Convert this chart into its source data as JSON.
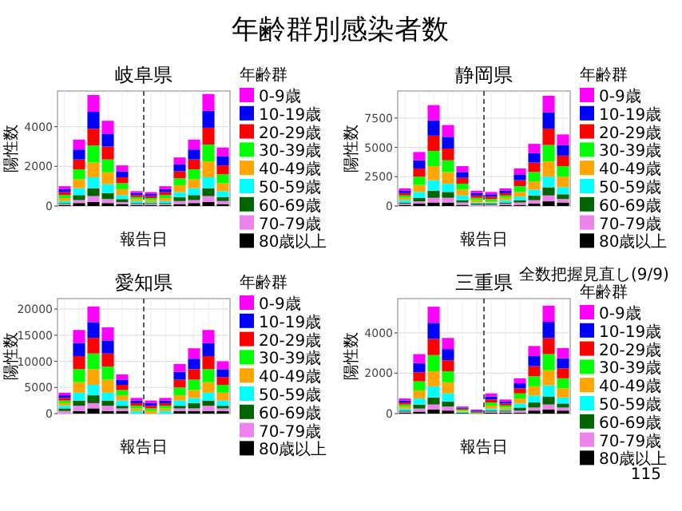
{
  "chart_data": [
    {
      "type": "other",
      "title": "年齢群別感染者数",
      "annotations": [
        "115"
      ]
    },
    {
      "type": "bar",
      "title": "岐阜県",
      "xlabel": "報告日",
      "ylabel": "陽性数",
      "legend_title": "年齢群",
      "legend": "right",
      "grid": true,
      "stacked": true,
      "ylim": [
        0,
        5800
      ],
      "yticks": [
        0,
        2000,
        4000
      ],
      "categories": [
        null,
        null,
        null,
        null,
        null,
        null,
        null,
        null,
        null,
        null,
        null,
        null
      ],
      "series": [
        {
          "name": "80歳以上",
          "color": "#000000",
          "values": [
            50,
            150,
            200,
            150,
            100,
            50,
            50,
            50,
            100,
            150,
            200,
            100
          ]
        },
        {
          "name": "70-79歳",
          "color": "#ee82ee",
          "values": [
            50,
            150,
            300,
            200,
            100,
            50,
            50,
            50,
            150,
            150,
            300,
            150
          ]
        },
        {
          "name": "60-69歳",
          "color": "#006400",
          "values": [
            50,
            250,
            400,
            300,
            150,
            50,
            50,
            50,
            200,
            250,
            400,
            200
          ]
        },
        {
          "name": "50-59歳",
          "color": "#00ffff",
          "values": [
            100,
            350,
            550,
            450,
            200,
            100,
            50,
            100,
            250,
            350,
            550,
            300
          ]
        },
        {
          "name": "40-49歳",
          "color": "#ffa500",
          "values": [
            150,
            450,
            750,
            600,
            300,
            100,
            100,
            150,
            350,
            450,
            800,
            400
          ]
        },
        {
          "name": "30-39歳",
          "color": "#00ff00",
          "values": [
            150,
            500,
            850,
            650,
            300,
            100,
            100,
            150,
            350,
            500,
            850,
            450
          ]
        },
        {
          "name": "20-29歳",
          "color": "#ff0000",
          "values": [
            150,
            500,
            850,
            650,
            300,
            100,
            100,
            150,
            350,
            500,
            850,
            450
          ]
        },
        {
          "name": "10-19歳",
          "color": "#0000ff",
          "values": [
            150,
            500,
            850,
            650,
            300,
            100,
            100,
            150,
            350,
            500,
            850,
            450
          ]
        },
        {
          "name": "0-9歳",
          "color": "#ff00ff",
          "values": [
            150,
            500,
            850,
            650,
            300,
            100,
            100,
            150,
            350,
            500,
            850,
            450
          ]
        }
      ]
    },
    {
      "type": "bar",
      "title": "静岡県",
      "xlabel": "報告日",
      "ylabel": "陽性数",
      "legend_title": "年齢群",
      "legend": "right",
      "grid": true,
      "stacked": true,
      "ylim": [
        0,
        9800
      ],
      "yticks": [
        0,
        2500,
        5000,
        7500
      ],
      "categories": [
        null,
        null,
        null,
        null,
        null,
        null,
        null,
        null,
        null,
        null,
        null,
        null
      ],
      "series": [
        {
          "name": "80歳以上",
          "color": "#000000",
          "values": [
            100,
            200,
            300,
            300,
            100,
            0,
            0,
            100,
            100,
            200,
            400,
            300
          ]
        },
        {
          "name": "70-79歳",
          "color": "#ee82ee",
          "values": [
            100,
            200,
            400,
            400,
            200,
            100,
            100,
            100,
            200,
            300,
            500,
            300
          ]
        },
        {
          "name": "60-69歳",
          "color": "#006400",
          "values": [
            100,
            300,
            600,
            500,
            200,
            100,
            100,
            100,
            200,
            400,
            700,
            400
          ]
        },
        {
          "name": "50-59歳",
          "color": "#00ffff",
          "values": [
            200,
            500,
            900,
            700,
            400,
            100,
            100,
            200,
            300,
            500,
            900,
            600
          ]
        },
        {
          "name": "40-49歳",
          "color": "#ffa500",
          "values": [
            200,
            600,
            1200,
            1000,
            500,
            200,
            100,
            200,
            400,
            700,
            1300,
            900
          ]
        },
        {
          "name": "30-39歳",
          "color": "#00ff00",
          "values": [
            200,
            700,
            1300,
            1000,
            500,
            200,
            200,
            200,
            500,
            800,
            1400,
            900
          ]
        },
        {
          "name": "20-29歳",
          "color": "#ff0000",
          "values": [
            200,
            700,
            1300,
            1000,
            500,
            200,
            200,
            200,
            500,
            800,
            1400,
            900
          ]
        },
        {
          "name": "10-19歳",
          "color": "#0000ff",
          "values": [
            200,
            700,
            1300,
            1000,
            500,
            200,
            200,
            200,
            500,
            800,
            1400,
            900
          ]
        },
        {
          "name": "0-9歳",
          "color": "#ff00ff",
          "values": [
            200,
            700,
            1300,
            1000,
            500,
            200,
            200,
            200,
            500,
            800,
            1400,
            900
          ]
        }
      ]
    },
    {
      "type": "bar",
      "title": "愛知県",
      "xlabel": "報告日",
      "ylabel": "陽性数",
      "legend_title": "年齢群",
      "legend": "right",
      "grid": true,
      "stacked": true,
      "ylim": [
        0,
        22000
      ],
      "yticks": [
        0,
        5000,
        10000,
        15000,
        20000
      ],
      "categories": [
        null,
        null,
        null,
        null,
        null,
        null,
        null,
        null,
        null,
        null,
        null,
        null
      ],
      "series": [
        {
          "name": "80歳以上",
          "color": "#000000",
          "values": [
            0,
            500,
            1000,
            500,
            500,
            0,
            0,
            0,
            500,
            500,
            500,
            500
          ]
        },
        {
          "name": "70-79歳",
          "color": "#ee82ee",
          "values": [
            500,
            1000,
            1000,
            1000,
            500,
            0,
            0,
            0,
            500,
            500,
            1000,
            500
          ]
        },
        {
          "name": "60-69歳",
          "color": "#006400",
          "values": [
            500,
            1000,
            1500,
            1000,
            500,
            0,
            0,
            0,
            500,
            1000,
            1000,
            500
          ]
        },
        {
          "name": "50-59歳",
          "color": "#00ffff",
          "values": [
            500,
            1500,
            2000,
            1500,
            1000,
            500,
            0,
            500,
            1000,
            1000,
            1500,
            1000
          ]
        },
        {
          "name": "40-49歳",
          "color": "#ffa500",
          "values": [
            500,
            2000,
            3000,
            2500,
            1000,
            500,
            500,
            500,
            1000,
            1500,
            2000,
            1500
          ]
        },
        {
          "name": "30-39歳",
          "color": "#00ff00",
          "values": [
            500,
            2500,
            3000,
            2500,
            1000,
            500,
            500,
            500,
            1500,
            2000,
            2500,
            1500
          ]
        },
        {
          "name": "20-29歳",
          "color": "#ff0000",
          "values": [
            500,
            2500,
            3000,
            2500,
            1000,
            500,
            500,
            500,
            1500,
            2000,
            2500,
            1500
          ]
        },
        {
          "name": "10-19歳",
          "color": "#0000ff",
          "values": [
            500,
            2500,
            3000,
            2500,
            1000,
            500,
            500,
            500,
            1500,
            2000,
            2500,
            1500
          ]
        },
        {
          "name": "0-9歳",
          "color": "#ff00ff",
          "values": [
            500,
            2500,
            3000,
            2500,
            1000,
            500,
            500,
            500,
            1500,
            2000,
            2500,
            1500
          ]
        }
      ]
    },
    {
      "type": "bar",
      "title": "三重県",
      "xlabel": "報告日",
      "ylabel": "陽性数",
      "legend_title": "年齢群",
      "legend": "right",
      "grid": true,
      "stacked": true,
      "ylim": [
        0,
        5700
      ],
      "yticks": [
        0,
        2000,
        4000
      ],
      "annotations": [
        "全数把握見直し(9/9)"
      ],
      "categories": [
        null,
        null,
        null,
        null,
        null,
        null,
        null,
        null,
        null,
        null,
        null,
        null
      ],
      "series": [
        {
          "name": "80歳以上",
          "color": "#000000",
          "values": [
            50,
            100,
            200,
            150,
            0,
            0,
            50,
            50,
            50,
            150,
            200,
            150
          ]
        },
        {
          "name": "70-79歳",
          "color": "#ee82ee",
          "values": [
            50,
            150,
            250,
            200,
            0,
            0,
            50,
            50,
            100,
            150,
            250,
            150
          ]
        },
        {
          "name": "60-69歳",
          "color": "#006400",
          "values": [
            50,
            200,
            350,
            250,
            50,
            0,
            50,
            50,
            150,
            250,
            400,
            200
          ]
        },
        {
          "name": "50-59歳",
          "color": "#00ffff",
          "values": [
            100,
            300,
            550,
            400,
            50,
            0,
            100,
            50,
            200,
            350,
            550,
            300
          ]
        },
        {
          "name": "40-49歳",
          "color": "#ffa500",
          "values": [
            100,
            400,
            750,
            550,
            50,
            0,
            150,
            100,
            250,
            450,
            750,
            450
          ]
        },
        {
          "name": "30-39歳",
          "color": "#00ff00",
          "values": [
            100,
            450,
            800,
            550,
            50,
            50,
            150,
            100,
            250,
            500,
            800,
            500
          ]
        },
        {
          "name": "20-29歳",
          "color": "#ff0000",
          "values": [
            100,
            450,
            800,
            550,
            50,
            50,
            150,
            100,
            250,
            500,
            800,
            500
          ]
        },
        {
          "name": "10-19歳",
          "color": "#0000ff",
          "values": [
            100,
            450,
            800,
            550,
            50,
            50,
            150,
            100,
            250,
            500,
            800,
            500
          ]
        },
        {
          "name": "0-9歳",
          "color": "#ff00ff",
          "values": [
            100,
            450,
            800,
            550,
            50,
            50,
            150,
            100,
            250,
            500,
            800,
            500
          ]
        }
      ]
    }
  ]
}
